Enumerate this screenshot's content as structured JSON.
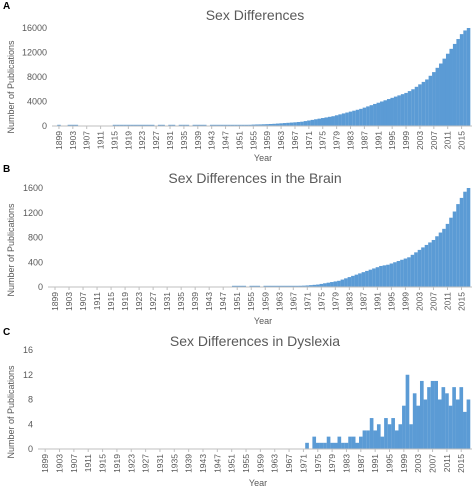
{
  "chart_data": [
    {
      "panel_label": "A",
      "type": "bar",
      "title": "Sex Differences",
      "xlabel": "Year",
      "ylabel": "Number of Publications",
      "ylim": [
        0,
        16000
      ],
      "yticks": [
        0,
        4000,
        8000,
        12000,
        16000
      ],
      "ytick_labels": [
        "0",
        "4000",
        "8000",
        "12000",
        "16000"
      ],
      "xlim": [
        1897,
        2018
      ],
      "xticks": [
        1899,
        1903,
        1907,
        1911,
        1915,
        1919,
        1923,
        1927,
        1931,
        1935,
        1939,
        1943,
        1947,
        1951,
        1955,
        1959,
        1963,
        1967,
        1971,
        1975,
        1979,
        1983,
        1987,
        1991,
        1995,
        1999,
        2003,
        2007,
        2011,
        2015
      ],
      "color": "#5b9bd5",
      "grid": false,
      "legend": "none",
      "x": [
        1899,
        1902,
        1903,
        1904,
        1915,
        1916,
        1917,
        1918,
        1919,
        1920,
        1921,
        1922,
        1923,
        1924,
        1925,
        1926,
        1928,
        1929,
        1931,
        1932,
        1934,
        1935,
        1936,
        1938,
        1939,
        1940,
        1941,
        1943,
        1944,
        1945,
        1946,
        1947,
        1948,
        1949,
        1950,
        1951,
        1952,
        1953,
        1954,
        1955,
        1956,
        1957,
        1958,
        1959,
        1960,
        1961,
        1962,
        1963,
        1964,
        1965,
        1966,
        1967,
        1968,
        1969,
        1970,
        1971,
        1972,
        1973,
        1974,
        1975,
        1976,
        1977,
        1978,
        1979,
        1980,
        1981,
        1982,
        1983,
        1984,
        1985,
        1986,
        1987,
        1988,
        1989,
        1990,
        1991,
        1992,
        1993,
        1994,
        1995,
        1996,
        1997,
        1998,
        1999,
        2000,
        2001,
        2002,
        2003,
        2004,
        2005,
        2006,
        2007,
        2008,
        2009,
        2010,
        2011,
        2012,
        2013,
        2014,
        2015,
        2016,
        2017
      ],
      "values": [
        20,
        30,
        40,
        30,
        20,
        30,
        25,
        30,
        35,
        40,
        45,
        40,
        50,
        45,
        40,
        45,
        50,
        40,
        45,
        50,
        60,
        55,
        60,
        70,
        65,
        60,
        55,
        50,
        55,
        70,
        80,
        90,
        100,
        120,
        150,
        160,
        170,
        190,
        200,
        230,
        250,
        260,
        280,
        300,
        330,
        360,
        400,
        440,
        480,
        520,
        560,
        600,
        650,
        700,
        800,
        900,
        1000,
        1100,
        1200,
        1300,
        1400,
        1500,
        1600,
        1750,
        1900,
        2050,
        2200,
        2350,
        2500,
        2650,
        2800,
        3000,
        3200,
        3400,
        3600,
        3800,
        4000,
        4200,
        4400,
        4600,
        4800,
        5000,
        5200,
        5400,
        5700,
        6000,
        6400,
        6800,
        7200,
        7600,
        8200,
        8800,
        9500,
        10200,
        11000,
        11800,
        12600,
        13400,
        14200,
        15000,
        15600,
        16000
      ]
    },
    {
      "panel_label": "B",
      "type": "bar",
      "title": "Sex Differences in the Brain",
      "xlabel": "Year",
      "ylabel": "Number of Publications",
      "ylim": [
        0,
        1600
      ],
      "yticks": [
        0,
        400,
        800,
        1200,
        1600
      ],
      "ytick_labels": [
        "0",
        "400",
        "800",
        "1200",
        "1600"
      ],
      "xlim": [
        1897,
        2018
      ],
      "xticks": [
        1899,
        1903,
        1907,
        1911,
        1915,
        1919,
        1923,
        1927,
        1931,
        1935,
        1939,
        1943,
        1947,
        1951,
        1955,
        1959,
        1963,
        1967,
        1971,
        1975,
        1979,
        1983,
        1987,
        1991,
        1995,
        1999,
        2003,
        2007,
        2011,
        2015
      ],
      "color": "#5b9bd5",
      "grid": false,
      "legend": "none",
      "x": [
        1950,
        1951,
        1952,
        1953,
        1955,
        1956,
        1957,
        1959,
        1960,
        1961,
        1962,
        1963,
        1964,
        1965,
        1966,
        1967,
        1968,
        1969,
        1970,
        1971,
        1972,
        1973,
        1974,
        1975,
        1976,
        1977,
        1978,
        1979,
        1980,
        1981,
        1982,
        1983,
        1984,
        1985,
        1986,
        1987,
        1988,
        1989,
        1990,
        1991,
        1992,
        1993,
        1994,
        1995,
        1996,
        1997,
        1998,
        1999,
        2000,
        2001,
        2002,
        2003,
        2004,
        2005,
        2006,
        2007,
        2008,
        2009,
        2010,
        2011,
        2012,
        2013,
        2014,
        2015,
        2016,
        2017
      ],
      "values": [
        5,
        5,
        6,
        5,
        6,
        5,
        7,
        8,
        9,
        10,
        10,
        11,
        12,
        13,
        14,
        16,
        18,
        20,
        22,
        25,
        30,
        35,
        40,
        50,
        60,
        70,
        80,
        90,
        100,
        120,
        140,
        160,
        180,
        200,
        220,
        240,
        260,
        280,
        300,
        320,
        340,
        350,
        360,
        380,
        400,
        420,
        440,
        460,
        480,
        520,
        560,
        600,
        640,
        680,
        720,
        760,
        820,
        880,
        940,
        1020,
        1120,
        1220,
        1340,
        1440,
        1540,
        1600
      ]
    },
    {
      "panel_label": "C",
      "type": "bar",
      "title": "Sex Differences in Dyslexia",
      "xlabel": "Year",
      "ylabel": "Number of Publications",
      "ylim": [
        0,
        16
      ],
      "yticks": [
        0,
        4,
        8,
        12,
        16
      ],
      "ytick_labels": [
        "0",
        "4",
        "8",
        "12",
        "16"
      ],
      "xlim": [
        1897,
        2018
      ],
      "xticks": [
        1899,
        1903,
        1907,
        1911,
        1915,
        1919,
        1923,
        1927,
        1931,
        1935,
        1939,
        1943,
        1947,
        1951,
        1955,
        1959,
        1963,
        1967,
        1971,
        1975,
        1979,
        1983,
        1987,
        1991,
        1995,
        1999,
        2003,
        2007,
        2011,
        2015
      ],
      "color": "#5b9bd5",
      "grid": false,
      "legend": "none",
      "x": [
        1972,
        1974,
        1975,
        1976,
        1977,
        1978,
        1979,
        1980,
        1981,
        1982,
        1983,
        1984,
        1985,
        1986,
        1987,
        1988,
        1989,
        1990,
        1991,
        1992,
        1993,
        1994,
        1995,
        1996,
        1997,
        1998,
        1999,
        2000,
        2001,
        2002,
        2003,
        2004,
        2005,
        2006,
        2007,
        2008,
        2009,
        2010,
        2011,
        2012,
        2013,
        2014,
        2015,
        2016,
        2017
      ],
      "values": [
        1,
        2,
        1,
        1,
        1,
        2,
        1,
        1,
        2,
        1,
        1,
        2,
        2,
        1,
        2,
        3,
        3,
        5,
        3,
        4,
        2,
        5,
        4,
        5,
        3,
        4,
        7,
        12,
        4,
        9,
        7,
        11,
        8,
        10,
        11,
        11,
        8,
        10,
        9,
        7,
        10,
        8,
        10,
        6,
        8
      ]
    }
  ]
}
